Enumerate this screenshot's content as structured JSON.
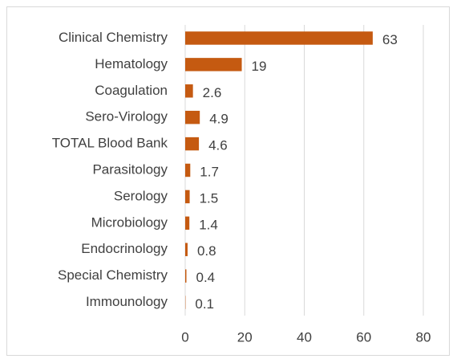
{
  "chart_data": {
    "type": "bar",
    "orientation": "horizontal",
    "categories": [
      "Clinical Chemistry",
      "Hematology",
      "Coagulation",
      "Sero-Virology",
      "TOTAL Blood Bank",
      "Parasitology",
      "Serology",
      "Microbiology",
      "Endocrinology",
      "Special Chemistry",
      "Immounology"
    ],
    "values": [
      63,
      19,
      2.6,
      4.9,
      4.6,
      1.7,
      1.5,
      1.4,
      0.8,
      0.4,
      0.1
    ],
    "color": "#c55a11",
    "xlim": [
      0,
      80
    ],
    "xticks": [
      0,
      20,
      40,
      60,
      80
    ],
    "grid": true
  }
}
